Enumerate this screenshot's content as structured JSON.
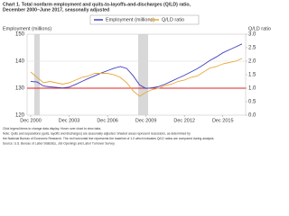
{
  "chart_data": {
    "type": "line",
    "title": "Chart 1. Total nonfarm employment and quits-to-layoffs-and-discharges (Q/LD) ratio,",
    "subtitle": "December 2000–June 2017, seasonally adjusted",
    "y_label": "Employment (millions)",
    "y2_label": "Q/LD ratio",
    "x": [
      "Dec 2000",
      null,
      null,
      null,
      null,
      null,
      "Dec 2003",
      null,
      null,
      null,
      null,
      null,
      "Dec 2006",
      null,
      null,
      null,
      null,
      null,
      "Dec 2009",
      null,
      null,
      null,
      null,
      null,
      "Dec 2012",
      null,
      null,
      null,
      null,
      null,
      "Dec 2015",
      null,
      null,
      null
    ],
    "series": [
      {
        "name": "Employment (millions)",
        "color": "#3f3fbf",
        "axis": "y",
        "values": [
          132.5,
          132.3,
          130.8,
          130.5,
          130.3,
          130.1,
          130.4,
          131.4,
          132.5,
          133.6,
          134.6,
          135.6,
          136.5,
          137.4,
          138.0,
          137.3,
          134.6,
          131.2,
          129.9,
          130.2,
          130.6,
          131.5,
          132.6,
          133.7,
          134.8,
          136.0,
          137.2,
          138.7,
          140.3,
          141.6,
          143.1,
          144.2,
          145.3,
          146.4
        ]
      },
      {
        "name": "Q/LD ratio",
        "color": "#e8a838",
        "axis": "y2",
        "values": [
          1.6,
          1.4,
          1.2,
          1.25,
          1.2,
          1.15,
          1.2,
          1.3,
          1.4,
          1.45,
          1.55,
          1.55,
          1.55,
          1.5,
          1.4,
          1.2,
          0.9,
          0.7,
          0.85,
          0.95,
          1.0,
          1.1,
          1.15,
          1.25,
          1.3,
          1.4,
          1.45,
          1.6,
          1.75,
          1.8,
          1.9,
          1.95,
          2.0,
          2.1
        ]
      }
    ],
    "ylim": [
      120,
      150
    ],
    "yticks": [
      120,
      130,
      140,
      150
    ],
    "y2lim": [
      0,
      3
    ],
    "y2ticks": [
      {
        "value": 0,
        "label": "0.0"
      },
      {
        "value": 0.5,
        "label": "0.5"
      },
      {
        "value": 1,
        "label": "1.0"
      },
      {
        "value": 1.5,
        "label": "1.5"
      },
      {
        "value": 2,
        "label": "2.0"
      },
      {
        "value": 2.5,
        "label": "2.5"
      },
      {
        "value": 3,
        "label": "3.0"
      }
    ],
    "reference_line": {
      "value": 1,
      "axis": "y2",
      "color": "#dd2222"
    },
    "grid": true,
    "notes": [
      "Click legend items to change data display. Hover over chart to view data.",
      "Note: Quits and separations (quits, layoffs and discharges) are seasonally adjusted. Shaded areas represent recessions, as determined by",
      "the National Bureau of Economic Research. The red horizontal line represents the baseline of 1.0 which indicates Q/LD ratios are compared during analysis.",
      "Source: U.S. Bureau of Labor Statistics, Job Openings and Labor Turnover Survey."
    ]
  }
}
